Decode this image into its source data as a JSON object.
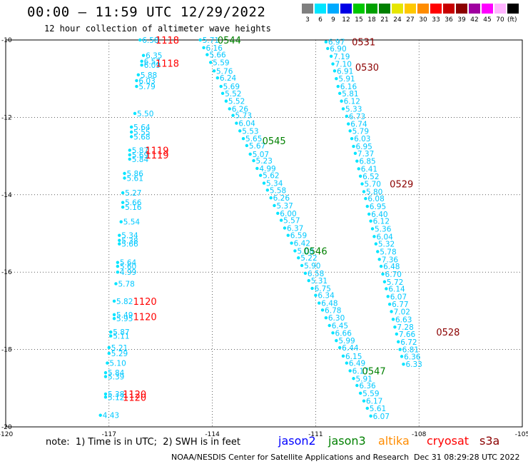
{
  "header": {
    "title": "00:00 — 11:59 UTC 12/29/2022",
    "subtitle": "12 hour collection of altimeter wave heights"
  },
  "color_scale": {
    "unit": "(ft)",
    "bins": [
      {
        "label": "3",
        "color": "#7f7f7f"
      },
      {
        "label": "6",
        "color": "#00e5ff"
      },
      {
        "label": "9",
        "color": "#00aaff"
      },
      {
        "label": "12",
        "color": "#0000e6"
      },
      {
        "label": "15",
        "color": "#00c800"
      },
      {
        "label": "18",
        "color": "#00a000"
      },
      {
        "label": "21",
        "color": "#008000"
      },
      {
        "label": "24",
        "color": "#e6e600"
      },
      {
        "label": "27",
        "color": "#ffc800"
      },
      {
        "label": "30",
        "color": "#ff8c00"
      },
      {
        "label": "33",
        "color": "#ff0000"
      },
      {
        "label": "36",
        "color": "#c80000"
      },
      {
        "label": "39",
        "color": "#8b0000"
      },
      {
        "label": "42",
        "color": "#a000a0"
      },
      {
        "label": "45",
        "color": "#ff00ff"
      },
      {
        "label": "70",
        "color": "#ffb4ff"
      },
      {
        "label": "",
        "color": "#000000"
      }
    ]
  },
  "footer": {
    "note": "note:  1) Time is in UTC;  2) SWH is in feet",
    "legend": [
      {
        "label": "jason2",
        "color": "#0000ff"
      },
      {
        "label": "jason3",
        "color": "#008000"
      },
      {
        "label": "altika",
        "color": "#ff8c00"
      },
      {
        "label": "cryosat",
        "color": "#ff0000"
      },
      {
        "label": "s3a",
        "color": "#8b0000"
      }
    ],
    "credit": "NOAA/NESDIS Center for Satellite Applications and Research",
    "stamp": "Dec 31 08:29:28 UTC 2022"
  },
  "chart_data": {
    "type": "scatter",
    "x_axis": {
      "range": [
        -120,
        -105
      ],
      "ticks": [
        "-120",
        "-117",
        "-114",
        "-111",
        "-108",
        "-105"
      ],
      "label": ""
    },
    "y_axis": {
      "range": [
        -20,
        -10
      ],
      "ticks": [
        "-10",
        "-12",
        "-14",
        "-16",
        "-18",
        "-20"
      ],
      "label": ""
    },
    "grid": "dotted",
    "value_color": "#00c8ff",
    "series": [
      {
        "satellite": "cryosat",
        "track_color": "#00e5ff",
        "points": [
          {
            "x": -116.1,
            "y": -10.0,
            "v": "6.58"
          },
          {
            "x": -116.0,
            "y": -10.4,
            "v": "6.35"
          },
          {
            "x": -116.05,
            "y": -10.55,
            "v": "6.57"
          },
          {
            "x": -116.05,
            "y": -10.65,
            "v": "6.09"
          },
          {
            "x": -116.15,
            "y": -10.9,
            "v": "5.88"
          },
          {
            "x": -116.2,
            "y": -11.05,
            "v": "6.03"
          },
          {
            "x": -116.2,
            "y": -11.2,
            "v": "5.79"
          },
          {
            "x": -116.25,
            "y": -11.9,
            "v": "5.50"
          },
          {
            "x": -116.35,
            "y": -12.25,
            "v": "5.64"
          },
          {
            "x": -116.35,
            "y": -12.38,
            "v": "5.55"
          },
          {
            "x": -116.35,
            "y": -12.5,
            "v": "5.68"
          },
          {
            "x": -116.4,
            "y": -12.85,
            "v": "5.87"
          },
          {
            "x": -116.4,
            "y": -12.97,
            "v": "5.69"
          },
          {
            "x": -116.4,
            "y": -13.08,
            "v": "5.84"
          },
          {
            "x": -116.55,
            "y": -13.45,
            "v": "5.86"
          },
          {
            "x": -116.55,
            "y": -13.57,
            "v": "5.61"
          },
          {
            "x": -116.6,
            "y": -13.95,
            "v": "5.27"
          },
          {
            "x": -116.6,
            "y": -14.2,
            "v": "5.66"
          },
          {
            "x": -116.6,
            "y": -14.32,
            "v": "5.16"
          },
          {
            "x": -116.65,
            "y": -14.7,
            "v": "5.54"
          },
          {
            "x": -116.7,
            "y": -15.05,
            "v": "5.34"
          },
          {
            "x": -116.7,
            "y": -15.18,
            "v": "5.38"
          },
          {
            "x": -116.7,
            "y": -15.27,
            "v": "5.66"
          },
          {
            "x": -116.75,
            "y": -15.75,
            "v": "5.64"
          },
          {
            "x": -116.75,
            "y": -15.85,
            "v": "5.60"
          },
          {
            "x": -116.75,
            "y": -16.0,
            "v": "4.99"
          },
          {
            "x": -116.8,
            "y": -16.3,
            "v": "5.78"
          },
          {
            "x": -116.85,
            "y": -16.75,
            "v": "5.82"
          },
          {
            "x": -116.85,
            "y": -17.1,
            "v": "5.49"
          },
          {
            "x": -116.85,
            "y": -17.2,
            "v": "5.95"
          },
          {
            "x": -116.95,
            "y": -17.55,
            "v": "5.87"
          },
          {
            "x": -116.95,
            "y": -17.65,
            "v": "5.11"
          },
          {
            "x": -117.0,
            "y": -17.95,
            "v": "5.21"
          },
          {
            "x": -117.0,
            "y": -18.1,
            "v": "5.29"
          },
          {
            "x": -117.05,
            "y": -18.35,
            "v": "5.10"
          },
          {
            "x": -117.1,
            "y": -18.6,
            "v": "5.84"
          },
          {
            "x": -117.1,
            "y": -18.7,
            "v": "5.39"
          },
          {
            "x": -117.1,
            "y": -19.15,
            "v": "5.38"
          },
          {
            "x": -117.1,
            "y": -19.23,
            "v": "5.12"
          },
          {
            "x": -117.25,
            "y": -19.7,
            "v": "4.43"
          }
        ]
      },
      {
        "satellite": "jason3",
        "track_color": "#00e5ff",
        "points": [
          {
            "x": -114.35,
            "y": -10.0,
            "v": "5.71"
          },
          {
            "x": -114.25,
            "y": -10.2,
            "v": "6.16"
          },
          {
            "x": -114.15,
            "y": -10.38,
            "v": "5.66"
          },
          {
            "x": -114.05,
            "y": -10.58,
            "v": "5.59"
          },
          {
            "x": -113.95,
            "y": -10.8,
            "v": "5.76"
          },
          {
            "x": -113.85,
            "y": -10.98,
            "v": "6.24"
          },
          {
            "x": -113.75,
            "y": -11.2,
            "v": "5.69"
          },
          {
            "x": -113.7,
            "y": -11.38,
            "v": "5.52"
          },
          {
            "x": -113.6,
            "y": -11.58,
            "v": "5.52"
          },
          {
            "x": -113.5,
            "y": -11.78,
            "v": "6.26"
          },
          {
            "x": -113.4,
            "y": -11.95,
            "v": "5.73"
          },
          {
            "x": -113.3,
            "y": -12.15,
            "v": "6.04"
          },
          {
            "x": -113.2,
            "y": -12.35,
            "v": "5.53"
          },
          {
            "x": -113.1,
            "y": -12.55,
            "v": "5.65"
          },
          {
            "x": -113.0,
            "y": -12.73,
            "v": "5.67"
          },
          {
            "x": -112.9,
            "y": -12.95,
            "v": "5.07"
          },
          {
            "x": -112.8,
            "y": -13.12,
            "v": "5.23"
          },
          {
            "x": -112.7,
            "y": -13.32,
            "v": "4.99"
          },
          {
            "x": -112.6,
            "y": -13.5,
            "v": "5.62"
          },
          {
            "x": -112.5,
            "y": -13.7,
            "v": "5.34"
          },
          {
            "x": -112.4,
            "y": -13.88,
            "v": "5.58"
          },
          {
            "x": -112.3,
            "y": -14.08,
            "v": "6.26"
          },
          {
            "x": -112.2,
            "y": -14.28,
            "v": "5.37"
          },
          {
            "x": -112.1,
            "y": -14.48,
            "v": "6.00"
          },
          {
            "x": -112.0,
            "y": -14.66,
            "v": "5.57"
          },
          {
            "x": -111.9,
            "y": -14.86,
            "v": "6.37"
          },
          {
            "x": -111.8,
            "y": -15.05,
            "v": "6.59"
          },
          {
            "x": -111.7,
            "y": -15.25,
            "v": "6.42"
          },
          {
            "x": -111.6,
            "y": -15.45,
            "v": "5.08"
          },
          {
            "x": -111.5,
            "y": -15.63,
            "v": "5.22"
          },
          {
            "x": -111.4,
            "y": -15.83,
            "v": "5.90"
          },
          {
            "x": -111.3,
            "y": -16.03,
            "v": "6.58"
          },
          {
            "x": -111.2,
            "y": -16.22,
            "v": "5.31"
          },
          {
            "x": -111.1,
            "y": -16.42,
            "v": "6.75"
          },
          {
            "x": -111.0,
            "y": -16.6,
            "v": "6.34"
          },
          {
            "x": -110.9,
            "y": -16.8,
            "v": "6.48"
          },
          {
            "x": -110.8,
            "y": -16.98,
            "v": "6.78"
          },
          {
            "x": -110.7,
            "y": -17.18,
            "v": "6.30"
          },
          {
            "x": -110.6,
            "y": -17.38,
            "v": "6.45"
          },
          {
            "x": -110.5,
            "y": -17.57,
            "v": "6.66"
          },
          {
            "x": -110.4,
            "y": -17.77,
            "v": "5.99"
          },
          {
            "x": -110.3,
            "y": -17.95,
            "v": "6.44"
          },
          {
            "x": -110.2,
            "y": -18.17,
            "v": "6.15"
          },
          {
            "x": -110.1,
            "y": -18.35,
            "v": "6.49"
          },
          {
            "x": -110.0,
            "y": -18.55,
            "v": "6.17"
          },
          {
            "x": -109.9,
            "y": -18.75,
            "v": "5.91"
          },
          {
            "x": -109.8,
            "y": -18.93,
            "v": "6.36"
          },
          {
            "x": -109.7,
            "y": -19.13,
            "v": "5.59"
          },
          {
            "x": -109.6,
            "y": -19.33,
            "v": "6.17"
          },
          {
            "x": -109.5,
            "y": -19.52,
            "v": "5.61"
          },
          {
            "x": -109.4,
            "y": -19.72,
            "v": "6.07"
          }
        ]
      },
      {
        "satellite": "s3a",
        "track_color": "#00e5ff",
        "points": [
          {
            "x": -110.7,
            "y": -10.05,
            "v": "6.97"
          },
          {
            "x": -110.65,
            "y": -10.22,
            "v": "6.90"
          },
          {
            "x": -110.55,
            "y": -10.42,
            "v": "7.19"
          },
          {
            "x": -110.5,
            "y": -10.62,
            "v": "7.10"
          },
          {
            "x": -110.45,
            "y": -10.8,
            "v": "6.91"
          },
          {
            "x": -110.4,
            "y": -11.0,
            "v": "5.91"
          },
          {
            "x": -110.35,
            "y": -11.2,
            "v": "6.16"
          },
          {
            "x": -110.3,
            "y": -11.38,
            "v": "5.81"
          },
          {
            "x": -110.25,
            "y": -11.58,
            "v": "6.12"
          },
          {
            "x": -110.2,
            "y": -11.78,
            "v": "5.33"
          },
          {
            "x": -110.1,
            "y": -11.97,
            "v": "6.73"
          },
          {
            "x": -110.05,
            "y": -12.17,
            "v": "6.74"
          },
          {
            "x": -110.0,
            "y": -12.35,
            "v": "5.79"
          },
          {
            "x": -109.95,
            "y": -12.55,
            "v": "6.03"
          },
          {
            "x": -109.9,
            "y": -12.75,
            "v": "6.95"
          },
          {
            "x": -109.85,
            "y": -12.93,
            "v": "7.37"
          },
          {
            "x": -109.8,
            "y": -13.13,
            "v": "6.85"
          },
          {
            "x": -109.75,
            "y": -13.33,
            "v": "6.41"
          },
          {
            "x": -109.7,
            "y": -13.52,
            "v": "6.52"
          },
          {
            "x": -109.65,
            "y": -13.72,
            "v": "5.70"
          },
          {
            "x": -109.6,
            "y": -13.92,
            "v": "5.80"
          },
          {
            "x": -109.55,
            "y": -14.1,
            "v": "6.08"
          },
          {
            "x": -109.5,
            "y": -14.3,
            "v": "6.95"
          },
          {
            "x": -109.45,
            "y": -14.5,
            "v": "6.40"
          },
          {
            "x": -109.4,
            "y": -14.68,
            "v": "6.12"
          },
          {
            "x": -109.35,
            "y": -14.88,
            "v": "5.36"
          },
          {
            "x": -109.3,
            "y": -15.08,
            "v": "6.04"
          },
          {
            "x": -109.25,
            "y": -15.27,
            "v": "5.32"
          },
          {
            "x": -109.2,
            "y": -15.47,
            "v": "5.78"
          },
          {
            "x": -109.15,
            "y": -15.67,
            "v": "7.36"
          },
          {
            "x": -109.1,
            "y": -15.85,
            "v": "6.48"
          },
          {
            "x": -109.05,
            "y": -16.05,
            "v": "6.70"
          },
          {
            "x": -109.0,
            "y": -16.25,
            "v": "5.72"
          },
          {
            "x": -108.95,
            "y": -16.43,
            "v": "6.14"
          },
          {
            "x": -108.9,
            "y": -16.63,
            "v": "6.07"
          },
          {
            "x": -108.85,
            "y": -16.83,
            "v": "6.77"
          },
          {
            "x": -108.8,
            "y": -17.02,
            "v": "7.02"
          },
          {
            "x": -108.75,
            "y": -17.22,
            "v": "6.63"
          },
          {
            "x": -108.7,
            "y": -17.42,
            "v": "7.28"
          },
          {
            "x": -108.65,
            "y": -17.6,
            "v": "7.66"
          },
          {
            "x": -108.6,
            "y": -17.8,
            "v": "6.72"
          },
          {
            "x": -108.55,
            "y": -18.0,
            "v": "6.81"
          },
          {
            "x": -108.5,
            "y": -18.18,
            "v": "6.36"
          },
          {
            "x": -108.45,
            "y": -18.38,
            "v": "6.33"
          }
        ]
      }
    ],
    "time_labels": [
      {
        "text": "1118",
        "x": -115.65,
        "y": -10.0,
        "color": "#ff0000"
      },
      {
        "text": "1118",
        "x": -115.65,
        "y": -10.6,
        "color": "#ff0000"
      },
      {
        "text": "1119",
        "x": -115.95,
        "y": -12.85,
        "color": "#ff0000"
      },
      {
        "text": "1119",
        "x": -115.95,
        "y": -12.97,
        "color": "#ff0000"
      },
      {
        "text": "1120",
        "x": -116.3,
        "y": -16.75,
        "color": "#ff0000"
      },
      {
        "text": "1120",
        "x": -116.3,
        "y": -17.15,
        "color": "#ff0000"
      },
      {
        "text": "1120",
        "x": -116.6,
        "y": -19.15,
        "color": "#ff0000"
      },
      {
        "text": "1120",
        "x": -116.6,
        "y": -19.23,
        "color": "#ff0000"
      },
      {
        "text": "0544",
        "x": -113.85,
        "y": -10.0,
        "color": "#008000"
      },
      {
        "text": "0545",
        "x": -112.55,
        "y": -12.6,
        "color": "#008000"
      },
      {
        "text": "0546",
        "x": -111.35,
        "y": -15.45,
        "color": "#008000"
      },
      {
        "text": "0547",
        "x": -109.65,
        "y": -18.55,
        "color": "#008000"
      },
      {
        "text": "0531",
        "x": -109.95,
        "y": -10.05,
        "color": "#8b0000"
      },
      {
        "text": "0530",
        "x": -109.85,
        "y": -10.7,
        "color": "#8b0000"
      },
      {
        "text": "0529",
        "x": -108.85,
        "y": -13.72,
        "color": "#8b0000"
      },
      {
        "text": "0528",
        "x": -107.5,
        "y": -17.55,
        "color": "#8b0000"
      }
    ]
  }
}
